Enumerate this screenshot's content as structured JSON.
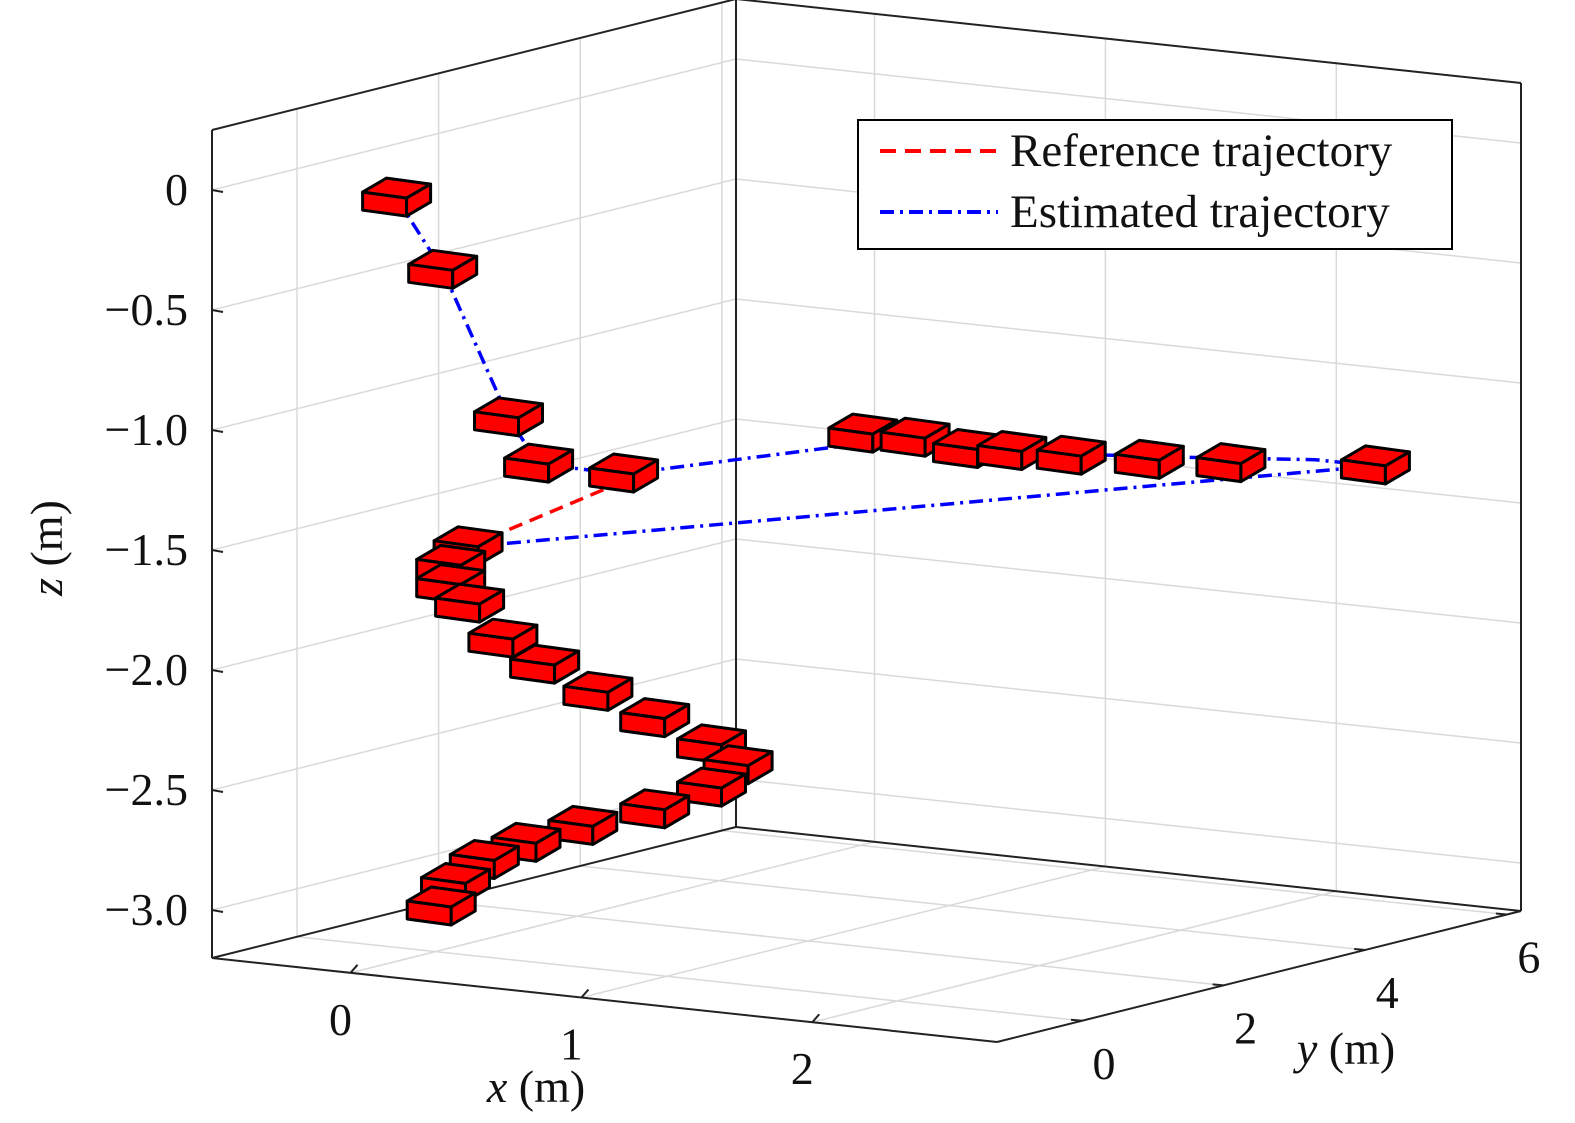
{
  "chart_data": {
    "type": "line",
    "projection": "3d",
    "axes": {
      "x": {
        "label_var": "x",
        "label_unit": " (m)",
        "ticks": [
          "0",
          "1",
          "2"
        ],
        "range": [
          -0.6,
          2.8
        ]
      },
      "y": {
        "label_var": "y",
        "label_unit": " (m)",
        "ticks": [
          "0",
          "2",
          "4",
          "6"
        ],
        "range": [
          -1.2,
          6.2
        ]
      },
      "z": {
        "label_var": "z",
        "label_unit": " (m)",
        "ticks": [
          "0",
          "−0.5",
          "−1.0",
          "−1.5",
          "−2.0",
          "−2.5",
          "−3.0"
        ],
        "range": [
          -3.2,
          0.25
        ]
      }
    },
    "grid": true,
    "legend": {
      "placement": "top-right",
      "entries": [
        {
          "label": "Reference trajectory",
          "color": "#ff0000",
          "style": "dashed"
        },
        {
          "label": "Estimated trajectory",
          "color": "#0000ff",
          "style": "dash-dot"
        }
      ]
    },
    "series": [
      {
        "name": "Reference trajectory",
        "color": "#ff0000",
        "points": [
          [
            0.6,
            0.7,
            -1.23
          ],
          [
            0.08,
            0.2,
            -1.52
          ]
        ]
      },
      {
        "name": "Estimated trajectory",
        "color": "#0000ff",
        "points": [
          [
            0.0,
            -0.55,
            -0.02
          ],
          [
            0.2,
            -0.55,
            -0.3
          ],
          [
            0.5,
            -0.6,
            -0.88
          ],
          [
            0.6,
            -0.5,
            -1.07
          ],
          [
            0.6,
            0.7,
            -1.2
          ],
          [
            1.0,
            3.2,
            -1.2
          ],
          [
            1.2,
            3.6,
            -1.25
          ],
          [
            1.4,
            4.3,
            -1.3
          ],
          [
            1.7,
            5.2,
            -1.35
          ],
          [
            2.0,
            5.9,
            -1.38
          ],
          [
            2.2,
            6.1,
            -1.4
          ],
          [
            0.08,
            0.2,
            -1.52
          ]
        ]
      }
    ],
    "poses": {
      "marker": "cube",
      "face_color": "#ff0000",
      "edge_color": "#000000",
      "points": [
        [
          0.0,
          -0.55,
          -0.02
        ],
        [
          0.2,
          -0.55,
          -0.3
        ],
        [
          0.5,
          -0.6,
          -0.88
        ],
        [
          0.6,
          -0.5,
          -1.07
        ],
        [
          0.6,
          0.7,
          -1.2
        ],
        [
          0.9,
          3.1,
          -1.18
        ],
        [
          1.05,
          3.35,
          -1.2
        ],
        [
          1.2,
          3.6,
          -1.25
        ],
        [
          1.3,
          3.9,
          -1.27
        ],
        [
          1.45,
          4.25,
          -1.3
        ],
        [
          1.65,
          4.7,
          -1.33
        ],
        [
          1.85,
          5.2,
          -1.36
        ],
        [
          2.2,
          6.1,
          -1.4
        ],
        [
          0.08,
          0.2,
          -1.52
        ],
        [
          0.02,
          0.15,
          -1.6
        ],
        [
          0.02,
          0.15,
          -1.68
        ],
        [
          0.08,
          0.22,
          -1.76
        ],
        [
          0.2,
          0.3,
          -1.9
        ],
        [
          0.35,
          0.4,
          -2.0
        ],
        [
          0.55,
          0.5,
          -2.1
        ],
        [
          0.75,
          0.65,
          -2.2
        ],
        [
          0.95,
          0.8,
          -2.3
        ],
        [
          1.05,
          0.85,
          -2.38
        ],
        [
          0.95,
          0.8,
          -2.48
        ],
        [
          0.75,
          0.65,
          -2.58
        ],
        [
          0.5,
          0.45,
          -2.66
        ],
        [
          0.3,
          0.3,
          -2.74
        ],
        [
          0.15,
          0.2,
          -2.82
        ],
        [
          0.05,
          0.12,
          -2.92
        ],
        [
          0.0,
          0.08,
          -3.02
        ]
      ]
    }
  }
}
